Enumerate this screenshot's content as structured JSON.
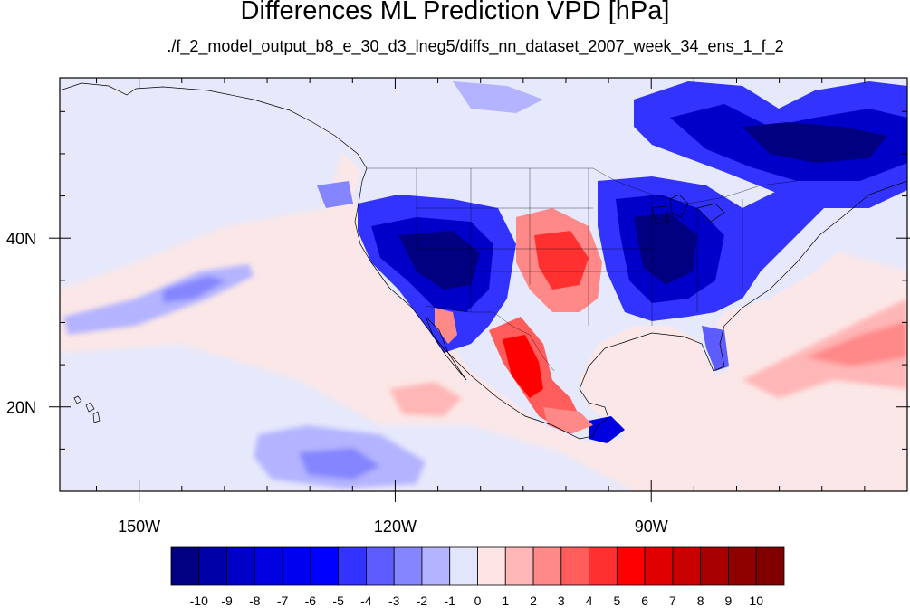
{
  "title": "Differences ML Prediction VPD [hPa]",
  "subtitle": "./f_2_model_output_b8_e_30_d3_lneg5/diffs_nn_dataset_2007_week_34_ens_1_f_2",
  "map": {
    "lon_range": [
      -159.3,
      -60
    ],
    "lat_range": [
      10,
      59
    ],
    "lon_ticks": [
      {
        "value": -150,
        "label": "150W"
      },
      {
        "value": -120,
        "label": "120W"
      },
      {
        "value": -90,
        "label": "90W"
      }
    ],
    "lat_ticks": [
      {
        "value": 40,
        "label": "40N"
      },
      {
        "value": 20,
        "label": "20N"
      }
    ],
    "ocean_color": "#fbe7e7",
    "land_color": "#e6e8fb"
  },
  "colorbar": {
    "levels": [
      "-10",
      "-9",
      "-8",
      "-7",
      "-6",
      "-5",
      "-4",
      "-3",
      "-2",
      "-1",
      "0",
      "1",
      "2",
      "3",
      "4",
      "5",
      "6",
      "7",
      "8",
      "9",
      "10"
    ],
    "colors": [
      "#000080",
      "#0000a8",
      "#0000c8",
      "#0000e0",
      "#0000f0",
      "#0000ff",
      "#3333ff",
      "#5c5cff",
      "#8585ff",
      "#b3b3ff",
      "#e3e5fb",
      "#fde5e5",
      "#ffb6b6",
      "#ff8888",
      "#ff5c5c",
      "#ff3030",
      "#ff0000",
      "#e00000",
      "#c80000",
      "#a80000",
      "#8f0000",
      "#800000"
    ]
  }
}
